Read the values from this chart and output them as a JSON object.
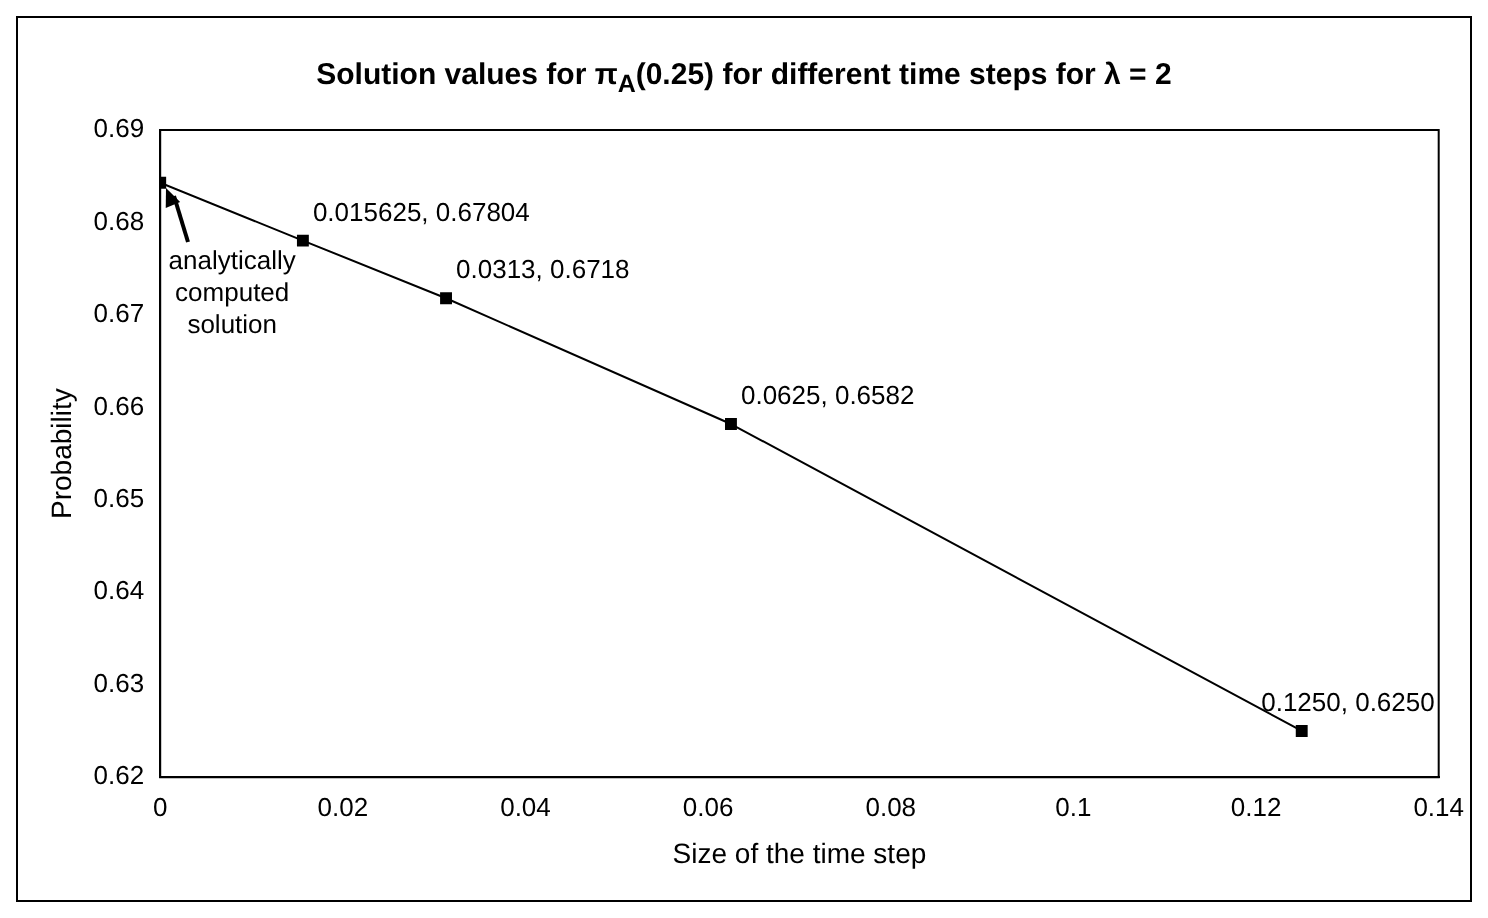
{
  "chart_data": {
    "type": "line",
    "title": "Solution values for π$_{A}$(0.25) for different time steps for λ = 2",
    "xlabel": "Size of the time step",
    "ylabel": "Probability",
    "x": [
      0,
      0.015625,
      0.0313,
      0.0625,
      0.125
    ],
    "series": [
      {
        "color": "#000000",
        "values": [
          0.6843,
          0.67804,
          0.6718,
          0.6582,
          0.625
        ],
        "value_labels": [
          null,
          "0.015625, 0.67804",
          "0.0313, 0.6718",
          "0.0625, 0.6582",
          "0.1250, 0.6250"
        ]
      }
    ],
    "xlim": [
      0,
      0.14
    ],
    "xticks": [
      0,
      0.02,
      0.04,
      0.06,
      0.08,
      0.1,
      0.12,
      0.14
    ],
    "ylim": [
      0.62,
      0.69
    ],
    "yticks": [
      0.62,
      0.63,
      0.64,
      0.65,
      0.66,
      0.67,
      0.68,
      0.69
    ],
    "annotations": [
      {
        "text": "analytically computed solution",
        "x": 0,
        "y": 0.6843
      }
    ],
    "grid": false,
    "legend": false,
    "marker": "square",
    "line_style": "solid"
  }
}
